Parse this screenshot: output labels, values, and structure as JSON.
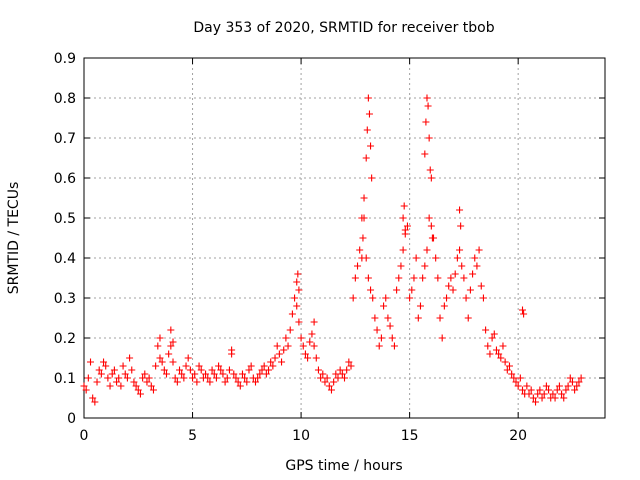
{
  "chart_data": {
    "type": "scatter",
    "title": "Day 353 of 2020, SRMTID for receiver tbob",
    "xlabel": "GPS time / hours",
    "ylabel": "SRMTID / TECUs",
    "xlim": [
      0,
      24
    ],
    "ylim": [
      0,
      0.9
    ],
    "xticks": [
      0,
      5,
      10,
      15,
      20
    ],
    "xtick_labels": [
      "0",
      "5",
      "10",
      "15",
      "20"
    ],
    "yticks": [
      0,
      0.1,
      0.2,
      0.3,
      0.4,
      0.5,
      0.6,
      0.7,
      0.8,
      0.9
    ],
    "ytick_labels": [
      "0",
      "0.1",
      "0.2",
      "0.3",
      "0.4",
      "0.5",
      "0.6",
      "0.7",
      "0.8",
      "0.9"
    ],
    "grid": true,
    "marker": "plus",
    "series": [
      {
        "name": "SRMTID",
        "color": "#ff0000",
        "x": [
          0.0,
          0.1,
          0.2,
          0.3,
          0.4,
          0.5,
          0.6,
          0.7,
          0.8,
          0.9,
          1.0,
          1.1,
          1.2,
          1.3,
          1.4,
          1.5,
          1.6,
          1.7,
          1.8,
          1.9,
          2.0,
          2.1,
          2.2,
          2.3,
          2.4,
          2.5,
          2.6,
          2.7,
          2.8,
          2.9,
          3.0,
          3.1,
          3.2,
          3.3,
          3.4,
          3.5,
          3.6,
          3.7,
          3.8,
          3.9,
          4.0,
          4.1,
          4.2,
          4.3,
          4.4,
          4.5,
          4.6,
          4.7,
          4.8,
          4.9,
          5.0,
          5.1,
          5.2,
          5.3,
          5.4,
          5.5,
          5.6,
          5.7,
          5.8,
          5.9,
          6.0,
          6.1,
          6.2,
          6.3,
          6.4,
          6.5,
          6.6,
          6.7,
          6.8,
          6.9,
          7.0,
          7.1,
          7.2,
          7.3,
          7.4,
          7.5,
          7.6,
          7.7,
          7.8,
          7.9,
          8.0,
          8.1,
          8.2,
          8.3,
          8.4,
          8.5,
          8.6,
          8.7,
          8.8,
          8.9,
          9.0,
          9.1,
          9.2,
          9.3,
          9.4,
          9.5,
          9.6,
          9.7,
          9.8,
          9.9,
          10.0,
          10.1,
          10.2,
          10.3,
          10.4,
          10.5,
          10.6,
          10.7,
          10.8,
          10.9,
          11.0,
          11.1,
          11.2,
          11.3,
          11.4,
          11.5,
          11.6,
          11.7,
          11.8,
          11.9,
          12.0,
          12.1,
          12.2,
          12.3,
          12.4,
          12.5,
          12.6,
          12.7,
          12.8,
          12.9,
          13.0,
          13.1,
          13.2,
          13.3,
          13.4,
          13.5,
          13.6,
          13.7,
          13.8,
          13.9,
          14.0,
          14.1,
          14.2,
          14.3,
          14.4,
          14.5,
          14.6,
          14.7,
          14.8,
          14.9,
          15.0,
          15.1,
          15.2,
          15.3,
          15.4,
          15.5,
          15.6,
          15.7,
          15.8,
          15.9,
          16.0,
          16.1,
          16.2,
          16.3,
          16.4,
          16.5,
          16.6,
          16.7,
          16.8,
          16.9,
          17.0,
          17.1,
          17.2,
          17.3,
          17.4,
          17.5,
          17.6,
          17.7,
          17.8,
          17.9,
          18.0,
          18.1,
          18.2,
          18.3,
          18.4,
          18.5,
          18.6,
          18.7,
          18.8,
          18.9,
          19.0,
          19.1,
          19.2,
          19.3,
          19.4,
          19.5,
          19.6,
          19.7,
          19.8,
          19.9,
          20.0,
          20.1,
          20.2,
          20.3,
          20.4,
          20.5,
          20.6,
          20.7,
          20.8,
          20.9,
          21.0,
          21.1,
          21.2,
          21.3,
          21.4,
          21.5,
          21.6,
          21.7,
          21.8,
          21.9,
          22.0,
          22.1,
          22.2,
          22.3,
          22.4,
          22.5,
          22.6,
          22.7,
          22.8,
          22.9,
          13.0,
          13.05,
          13.1,
          13.15,
          13.2,
          13.25,
          15.7,
          15.75,
          15.8,
          15.85,
          15.9,
          15.95,
          16.0,
          16.05,
          17.3,
          17.35,
          14.7,
          14.75,
          14.8,
          12.8,
          12.85,
          12.9,
          20.2,
          20.25,
          3.5,
          4.0,
          4.1,
          9.8,
          9.85,
          9.9,
          10.6,
          6.8
        ],
        "y": [
          0.08,
          0.07,
          0.1,
          0.14,
          0.05,
          0.04,
          0.09,
          0.12,
          0.11,
          0.14,
          0.13,
          0.1,
          0.08,
          0.11,
          0.12,
          0.09,
          0.1,
          0.08,
          0.13,
          0.11,
          0.1,
          0.15,
          0.12,
          0.09,
          0.08,
          0.07,
          0.06,
          0.1,
          0.11,
          0.09,
          0.1,
          0.08,
          0.07,
          0.13,
          0.18,
          0.15,
          0.14,
          0.12,
          0.11,
          0.16,
          0.18,
          0.14,
          0.1,
          0.09,
          0.12,
          0.11,
          0.1,
          0.13,
          0.15,
          0.12,
          0.1,
          0.11,
          0.09,
          0.13,
          0.12,
          0.1,
          0.11,
          0.1,
          0.09,
          0.12,
          0.11,
          0.1,
          0.13,
          0.12,
          0.11,
          0.09,
          0.1,
          0.12,
          0.16,
          0.11,
          0.1,
          0.09,
          0.08,
          0.11,
          0.1,
          0.09,
          0.12,
          0.13,
          0.1,
          0.09,
          0.1,
          0.11,
          0.12,
          0.13,
          0.11,
          0.12,
          0.14,
          0.13,
          0.15,
          0.18,
          0.16,
          0.14,
          0.17,
          0.2,
          0.18,
          0.22,
          0.26,
          0.3,
          0.28,
          0.24,
          0.2,
          0.18,
          0.16,
          0.15,
          0.19,
          0.21,
          0.18,
          0.15,
          0.12,
          0.1,
          0.11,
          0.09,
          0.1,
          0.08,
          0.07,
          0.09,
          0.11,
          0.1,
          0.12,
          0.11,
          0.1,
          0.12,
          0.14,
          0.13,
          0.3,
          0.35,
          0.38,
          0.42,
          0.5,
          0.55,
          0.4,
          0.35,
          0.32,
          0.3,
          0.25,
          0.22,
          0.18,
          0.2,
          0.28,
          0.3,
          0.25,
          0.23,
          0.2,
          0.18,
          0.32,
          0.35,
          0.38,
          0.42,
          0.46,
          0.48,
          0.3,
          0.32,
          0.35,
          0.4,
          0.25,
          0.28,
          0.35,
          0.38,
          0.42,
          0.5,
          0.6,
          0.45,
          0.4,
          0.35,
          0.25,
          0.2,
          0.28,
          0.3,
          0.33,
          0.35,
          0.32,
          0.36,
          0.4,
          0.42,
          0.38,
          0.35,
          0.3,
          0.25,
          0.32,
          0.36,
          0.4,
          0.38,
          0.42,
          0.33,
          0.3,
          0.22,
          0.18,
          0.16,
          0.2,
          0.21,
          0.17,
          0.16,
          0.15,
          0.18,
          0.14,
          0.12,
          0.13,
          0.11,
          0.1,
          0.09,
          0.08,
          0.1,
          0.07,
          0.06,
          0.08,
          0.06,
          0.07,
          0.05,
          0.04,
          0.06,
          0.07,
          0.05,
          0.06,
          0.08,
          0.07,
          0.05,
          0.06,
          0.05,
          0.07,
          0.08,
          0.06,
          0.05,
          0.07,
          0.08,
          0.1,
          0.09,
          0.07,
          0.08,
          0.09,
          0.1,
          0.65,
          0.72,
          0.8,
          0.76,
          0.68,
          0.6,
          0.66,
          0.74,
          0.8,
          0.78,
          0.7,
          0.62,
          0.48,
          0.45,
          0.52,
          0.48,
          0.5,
          0.53,
          0.47,
          0.4,
          0.45,
          0.5,
          0.27,
          0.26,
          0.2,
          0.22,
          0.19,
          0.34,
          0.36,
          0.32,
          0.24,
          0.17
        ]
      }
    ]
  }
}
